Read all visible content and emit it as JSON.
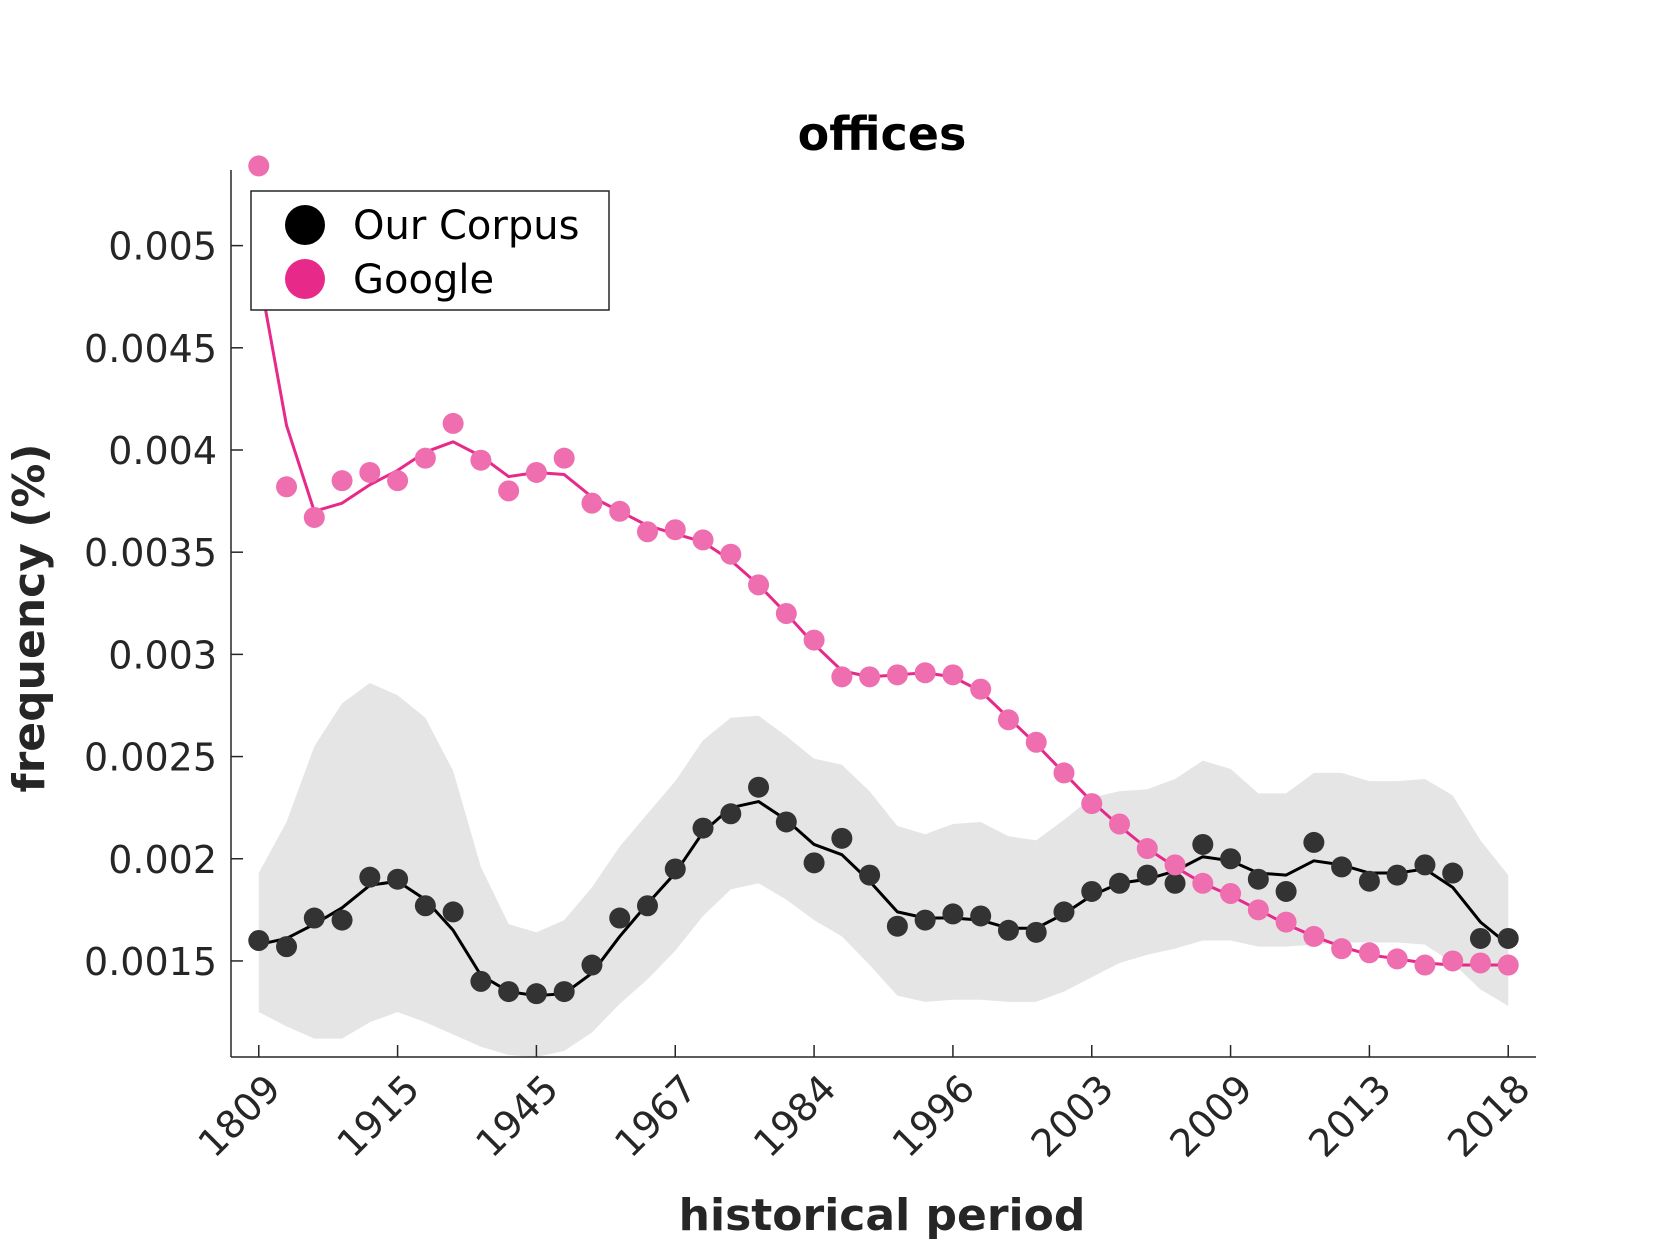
{
  "chart_data": {
    "type": "line",
    "title": "offices",
    "xlabel": "historical period",
    "ylabel": "frequency (%)",
    "x_tick_labels": [
      "1809",
      "1915",
      "1945",
      "1967",
      "1984",
      "1996",
      "2003",
      "2009",
      "2013",
      "2018"
    ],
    "x_tick_positions": [
      1,
      6,
      11,
      16,
      21,
      26,
      31,
      36,
      41,
      46
    ],
    "xlim": [
      0,
      47
    ],
    "ylim": [
      0.00103,
      0.00537
    ],
    "yticks": [
      0.0015,
      0.002,
      0.0025,
      0.003,
      0.0035,
      0.004,
      0.0045,
      0.005
    ],
    "y_tick_labels": [
      "0.0015",
      "0.002",
      "0.0025",
      "0.003",
      "0.0035",
      "0.004",
      "0.0045",
      "0.005"
    ],
    "legend": {
      "location": "top-left",
      "entries": [
        "Our Corpus",
        "Google"
      ]
    },
    "x": [
      1,
      2,
      3,
      4,
      5,
      6,
      7,
      8,
      9,
      10,
      11,
      12,
      13,
      14,
      15,
      16,
      17,
      18,
      19,
      20,
      21,
      22,
      23,
      24,
      25,
      26,
      27,
      28,
      29,
      30,
      31,
      32,
      33,
      34,
      35,
      36,
      37,
      38,
      39,
      40,
      41,
      42,
      43,
      44,
      45,
      46
    ],
    "series": [
      {
        "name": "Our Corpus",
        "color": "#000000",
        "marker_color": "#333333",
        "points": [
          0.0016,
          0.00157,
          0.00171,
          0.0017,
          0.00191,
          0.0019,
          0.00177,
          0.00174,
          0.0014,
          0.00135,
          0.00134,
          0.00135,
          0.00148,
          0.00171,
          0.00177,
          0.00195,
          0.00215,
          0.00222,
          0.00235,
          0.00218,
          0.00198,
          0.0021,
          0.00192,
          0.00167,
          0.0017,
          0.00173,
          0.00172,
          0.00165,
          0.00164,
          0.00174,
          0.00184,
          0.00188,
          0.00192,
          0.00188,
          0.00207,
          0.002,
          0.0019,
          0.00184,
          0.00208,
          0.00196,
          0.00189,
          0.00192,
          0.00197,
          0.00193,
          0.00161,
          0.00161
        ],
        "smoothed": [
          0.00158,
          0.00161,
          0.00168,
          0.00176,
          0.00187,
          0.00189,
          0.0018,
          0.00165,
          0.00143,
          0.00135,
          0.00133,
          0.00134,
          0.00144,
          0.00162,
          0.00178,
          0.00193,
          0.00213,
          0.00225,
          0.00228,
          0.00219,
          0.00207,
          0.00202,
          0.00189,
          0.00174,
          0.00171,
          0.00171,
          0.0017,
          0.00166,
          0.00166,
          0.00173,
          0.00182,
          0.00188,
          0.0019,
          0.00194,
          0.00201,
          0.00199,
          0.00193,
          0.00192,
          0.00199,
          0.00197,
          0.00193,
          0.00193,
          0.00195,
          0.00186,
          0.00169,
          0.00158
        ],
        "band_upper": [
          0.00193,
          0.00218,
          0.00255,
          0.00276,
          0.00286,
          0.0028,
          0.00269,
          0.00243,
          0.00196,
          0.00168,
          0.00164,
          0.0017,
          0.00186,
          0.00206,
          0.00222,
          0.00238,
          0.00258,
          0.00269,
          0.0027,
          0.0026,
          0.00249,
          0.00246,
          0.00233,
          0.00216,
          0.00212,
          0.00217,
          0.00218,
          0.00211,
          0.00209,
          0.00219,
          0.0023,
          0.00233,
          0.00234,
          0.00239,
          0.00248,
          0.00244,
          0.00232,
          0.00232,
          0.00242,
          0.00242,
          0.00238,
          0.00238,
          0.00239,
          0.00231,
          0.00209,
          0.00192
        ],
        "band_lower": [
          0.00125,
          0.00118,
          0.00112,
          0.00112,
          0.0012,
          0.00125,
          0.0012,
          0.00114,
          0.00108,
          0.00104,
          0.00103,
          0.00106,
          0.00115,
          0.00129,
          0.00141,
          0.00155,
          0.00172,
          0.00185,
          0.00188,
          0.0018,
          0.0017,
          0.00162,
          0.00148,
          0.00133,
          0.0013,
          0.00131,
          0.00131,
          0.0013,
          0.0013,
          0.00135,
          0.00142,
          0.00149,
          0.00153,
          0.00156,
          0.0016,
          0.0016,
          0.00157,
          0.00157,
          0.00158,
          0.00159,
          0.00159,
          0.00159,
          0.00158,
          0.00149,
          0.00136,
          0.00128
        ]
      },
      {
        "name": "Google",
        "color": "#e7298a",
        "marker_color": "#ee6eb0",
        "points": [
          0.00539,
          0.00382,
          0.00367,
          0.00385,
          0.00389,
          0.00385,
          0.00396,
          0.00413,
          0.00395,
          0.0038,
          0.00389,
          0.00396,
          0.00374,
          0.0037,
          0.0036,
          0.00361,
          0.00356,
          0.00349,
          0.00334,
          0.0032,
          0.00307,
          0.00289,
          0.00289,
          0.0029,
          0.00291,
          0.0029,
          0.00283,
          0.00268,
          0.00257,
          0.00242,
          0.00227,
          0.00217,
          0.00205,
          0.00197,
          0.00188,
          0.00183,
          0.00175,
          0.00169,
          0.00162,
          0.00156,
          0.00154,
          0.00151,
          0.00148,
          0.0015,
          0.00149,
          0.00148
        ],
        "smoothed": [
          0.00487,
          0.00412,
          0.0037,
          0.00374,
          0.00383,
          0.0039,
          0.00399,
          0.00404,
          0.00397,
          0.00387,
          0.00389,
          0.00388,
          0.00377,
          0.0037,
          0.00363,
          0.00359,
          0.00355,
          0.00346,
          0.00334,
          0.0032,
          0.00305,
          0.00292,
          0.00289,
          0.0029,
          0.00291,
          0.00289,
          0.00282,
          0.00269,
          0.00256,
          0.00242,
          0.00228,
          0.00216,
          0.00205,
          0.00196,
          0.00188,
          0.00182,
          0.00175,
          0.00168,
          0.00162,
          0.00157,
          0.00153,
          0.00151,
          0.00149,
          0.00148,
          0.00148,
          0.00148
        ]
      }
    ]
  }
}
